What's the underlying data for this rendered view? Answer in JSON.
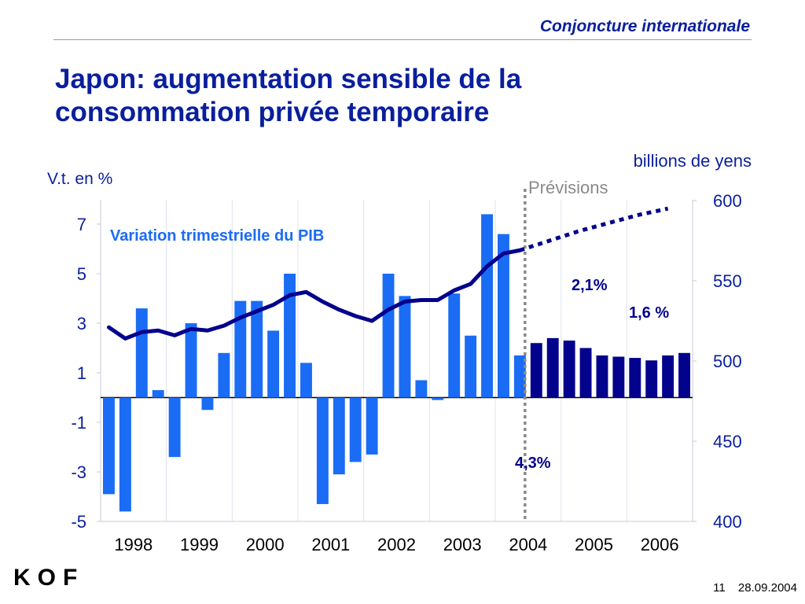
{
  "header": {
    "section": "Conjoncture internationale"
  },
  "title": "Japon: augmentation sensible de la consommation privée temporaire",
  "footer": {
    "page": "11",
    "date": "28.09.2004",
    "logo": "KOF"
  },
  "colors": {
    "blue_dark": "#0a1f9c",
    "bar_light": "#1a6cf5",
    "bar_dark": "#02028c",
    "forecast_line": "#8a8a8a"
  },
  "chart_data": {
    "type": "bar",
    "left_axis_label": "V.t. en %",
    "right_axis_label": "billions de yens",
    "forecast_label": "Prévisions",
    "series_label": "Variation trimestrielle du PIB",
    "annotations": [
      "2,1%",
      "1,6 %",
      "4,3%"
    ],
    "x_ticks": [
      "1998",
      "1999",
      "2000",
      "2001",
      "2002",
      "2003",
      "2004",
      "2005",
      "2006"
    ],
    "left_yticks": [
      "7",
      "5",
      "3",
      "1",
      "-1",
      "-3",
      "-5"
    ],
    "right_yticks": [
      "600",
      "550",
      "500",
      "450",
      "400"
    ],
    "ylim_left": [
      -5,
      8
    ],
    "ylim_right": [
      400,
      600
    ],
    "bars": [
      -3.9,
      -4.6,
      3.6,
      0.3,
      -2.4,
      3.0,
      -0.5,
      1.8,
      3.9,
      3.9,
      2.7,
      5.0,
      1.4,
      -4.3,
      -3.1,
      -2.6,
      -2.3,
      5.0,
      4.1,
      0.7,
      -0.1,
      4.2,
      2.5,
      7.4,
      6.6,
      1.7,
      2.2,
      2.4,
      2.3,
      2.0,
      1.7,
      1.65,
      1.6,
      1.5,
      1.7,
      1.8
    ],
    "forecast_start_index": 26,
    "consumption": [
      521,
      514,
      518,
      519,
      516,
      520,
      519,
      522,
      527,
      531,
      535,
      541,
      543,
      537,
      532,
      528,
      525,
      532,
      537,
      538,
      538,
      544,
      548,
      559,
      567,
      569
    ],
    "consumption_forecast": [
      569,
      575,
      581,
      586,
      591,
      595
    ]
  }
}
